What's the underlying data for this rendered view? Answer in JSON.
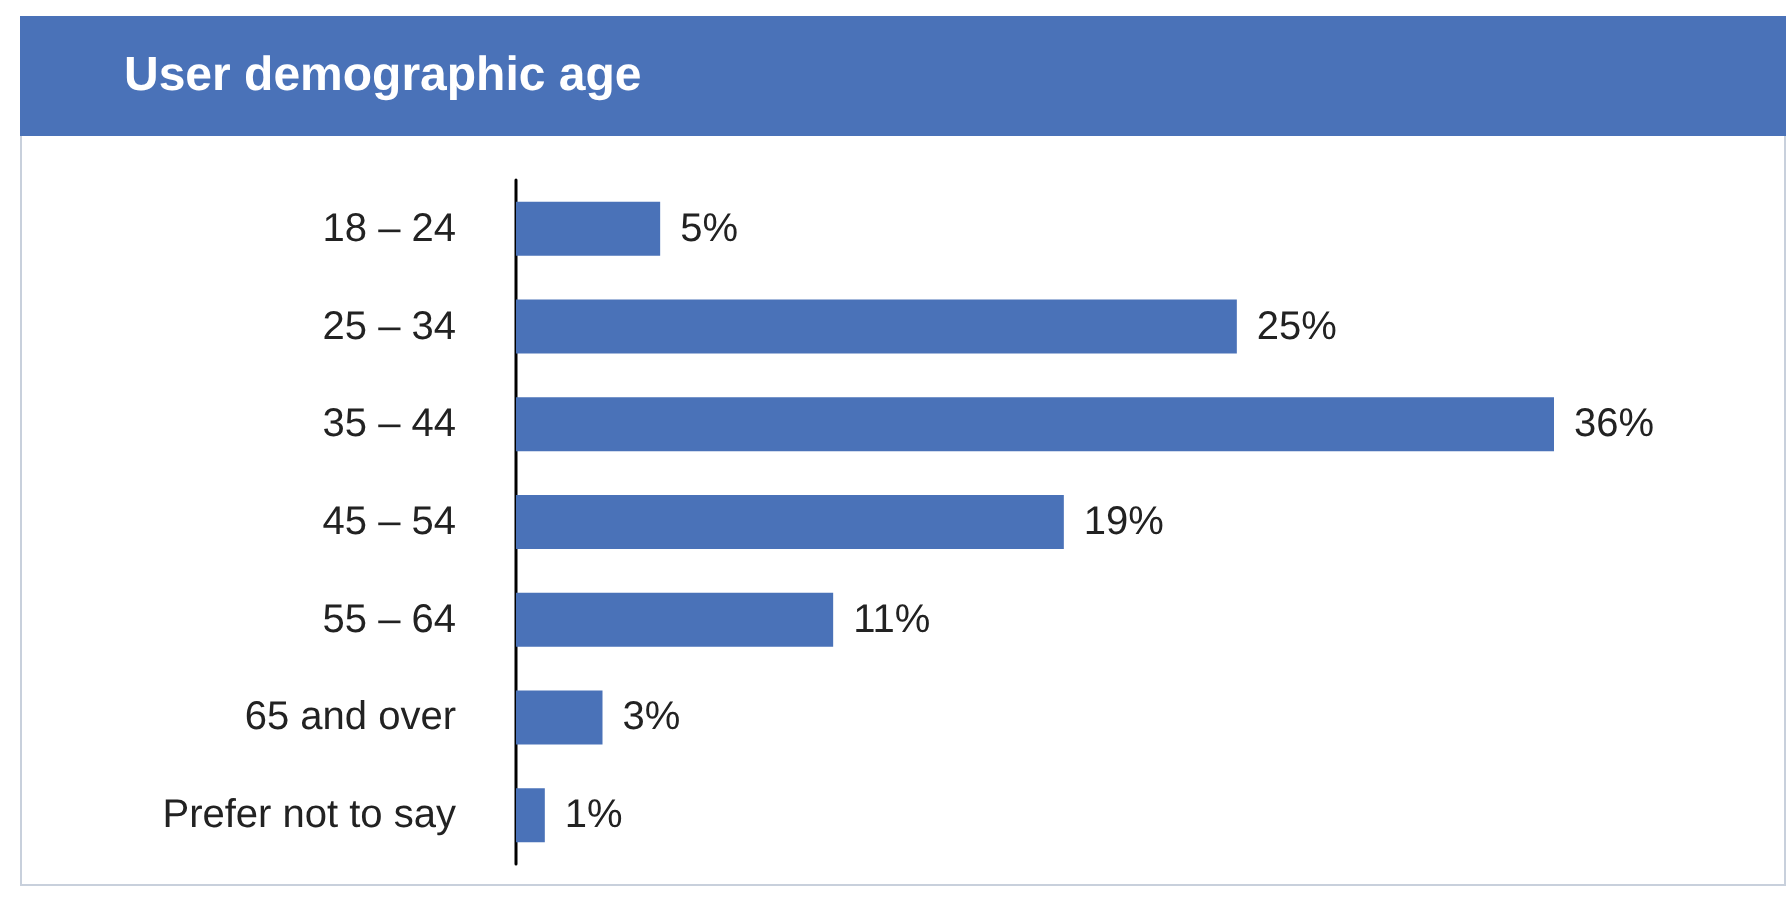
{
  "chart_data": {
    "type": "bar",
    "orientation": "horizontal",
    "title": "User demographic age",
    "categories": [
      "18 – 24",
      "25 – 34",
      "35 – 44",
      "45 – 54",
      "55 – 64",
      "65 and over",
      "Prefer not to say"
    ],
    "values": [
      5,
      25,
      36,
      19,
      11,
      3,
      1
    ],
    "value_labels": [
      "5%",
      "25%",
      "36%",
      "19%",
      "11%",
      "3%",
      "1%"
    ],
    "color": "#4a72b8",
    "tick_labels": "y"
  }
}
